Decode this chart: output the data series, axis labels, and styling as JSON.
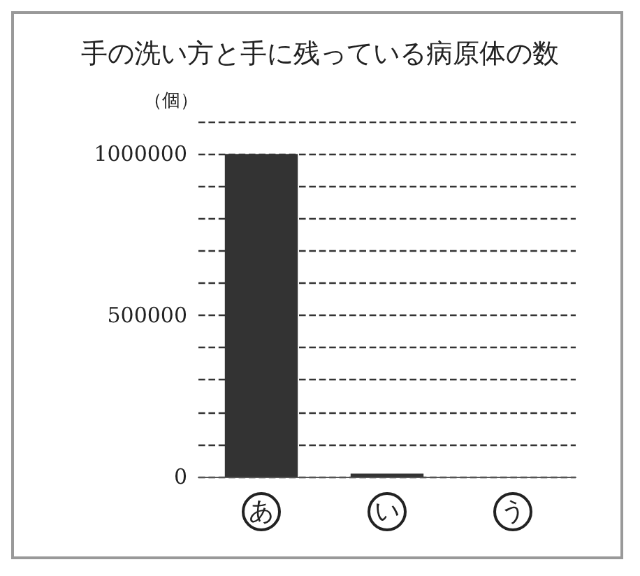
{
  "chart_data": {
    "type": "bar",
    "title": "手の洗い方と手に残っている病原体の数",
    "ylabel": "（個）",
    "categories": [
      "あ",
      "い",
      "う"
    ],
    "values": [
      1000000,
      10000,
      0
    ],
    "color": "#333333",
    "ylim": [
      0,
      1100000
    ],
    "yticks": [
      0,
      {
        "value": 100000,
        "label": null
      },
      {
        "value": 200000,
        "label": null
      },
      {
        "value": 300000,
        "label": null
      },
      {
        "value": 400000,
        "label": null
      },
      500000,
      {
        "value": 600000,
        "label": null
      },
      {
        "value": 700000,
        "label": null
      },
      {
        "value": 800000,
        "label": null
      },
      {
        "value": 900000,
        "label": null
      },
      1000000,
      {
        "value": 1100000,
        "label": null
      }
    ],
    "grid": "y",
    "line_style": "dashed"
  }
}
